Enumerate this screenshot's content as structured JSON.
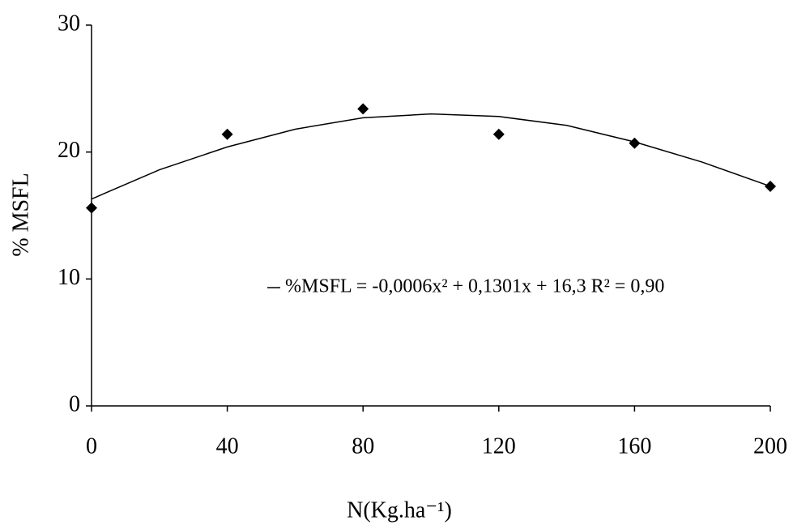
{
  "chart_data": {
    "type": "scatter",
    "x_label": "N(Kg.ha⁻¹)",
    "y_label": "% MSFL",
    "xlim": [
      0,
      200
    ],
    "xticks": [
      0,
      40,
      80,
      120,
      160,
      200
    ],
    "ylim": [
      0,
      30
    ],
    "yticks": [
      0,
      10,
      20,
      30
    ],
    "grid": false,
    "series": [
      {
        "type": "scatter",
        "marker": "diamond",
        "color": "#000000",
        "x": [
          0,
          40,
          80,
          120,
          160,
          200
        ],
        "values": [
          15.6,
          21.4,
          23.4,
          21.4,
          20.7,
          17.3
        ]
      },
      {
        "type": "line",
        "name": "%MSFL = -0,0006x² + 0,1301x + 16,3 R² = 0,90",
        "color": "#000000",
        "x": [
          0,
          20,
          40,
          60,
          80,
          100,
          120,
          140,
          160,
          180,
          200
        ],
        "values": [
          16.3,
          18.6,
          20.4,
          21.8,
          22.7,
          23.0,
          22.8,
          22.1,
          20.8,
          19.2,
          17.3
        ]
      }
    ]
  }
}
